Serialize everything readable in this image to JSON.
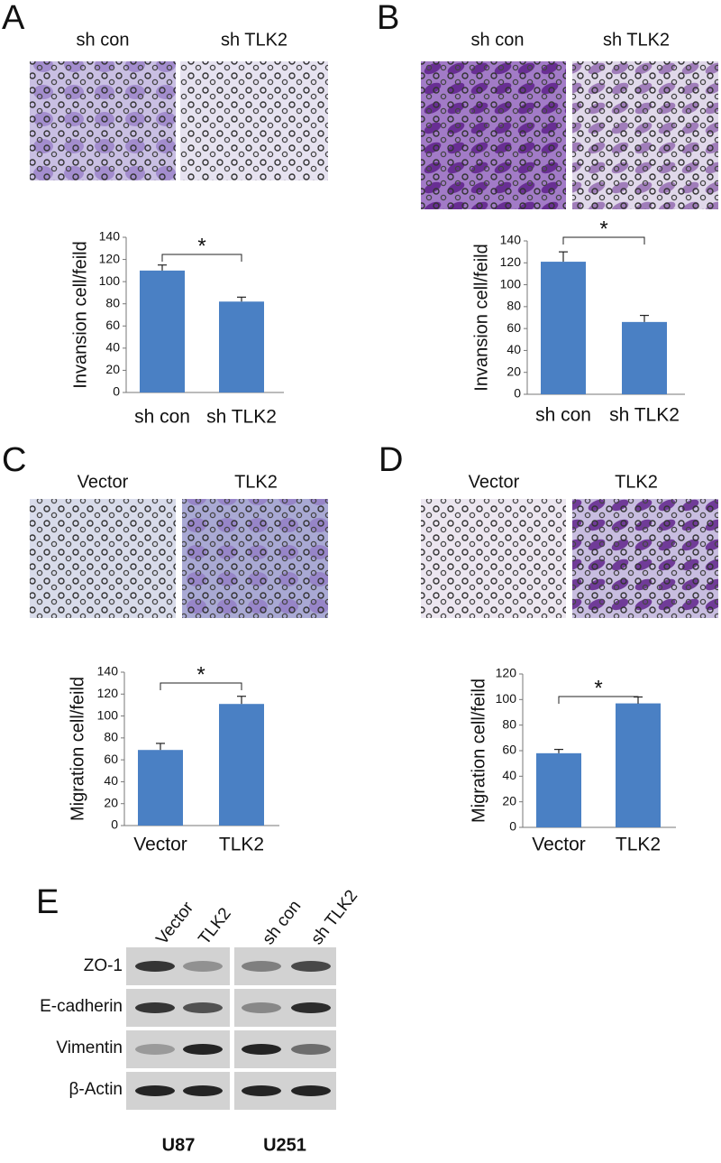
{
  "panel_labels": [
    "A",
    "B",
    "C",
    "D",
    "E"
  ],
  "micrograph_captions": [
    [
      "sh con",
      "sh TLK2"
    ],
    [
      "sh con",
      "sh TLK2"
    ],
    [
      "Vector",
      "TLK2"
    ],
    [
      "Vector",
      "TLK2"
    ]
  ],
  "chart_data": [
    {
      "type": "bar",
      "y_label": "Invansion cell/feild",
      "categories": [
        "sh con",
        "sh TLK2"
      ],
      "values": [
        110,
        82
      ],
      "errors": [
        5,
        4
      ],
      "color": "#4a80c4",
      "ylim": [
        0,
        140
      ],
      "yticks": [
        0,
        20,
        40,
        60,
        80,
        100,
        120,
        140
      ],
      "annotation": "*"
    },
    {
      "type": "bar",
      "y_label": "Invansion cell/feild",
      "categories": [
        "sh con",
        "sh TLK2"
      ],
      "values": [
        121,
        66
      ],
      "errors": [
        9,
        6
      ],
      "color": "#4a80c4",
      "ylim": [
        0,
        140
      ],
      "yticks": [
        0,
        20,
        40,
        60,
        80,
        100,
        120,
        140
      ],
      "annotation": "*"
    },
    {
      "type": "bar",
      "y_label": "Migration cell/feild",
      "categories": [
        "Vector",
        "TLK2"
      ],
      "values": [
        69,
        111
      ],
      "errors": [
        6,
        7
      ],
      "color": "#4a80c4",
      "ylim": [
        0,
        140
      ],
      "yticks": [
        0,
        20,
        40,
        60,
        80,
        100,
        120,
        140
      ],
      "annotation": "*"
    },
    {
      "type": "bar",
      "y_label": "Migration cell/feild",
      "categories": [
        "Vector",
        "TLK2"
      ],
      "values": [
        58,
        97
      ],
      "errors": [
        3,
        5
      ],
      "color": "#4a80c4",
      "ylim": [
        0,
        120
      ],
      "yticks": [
        0,
        20,
        40,
        60,
        80,
        100,
        120
      ],
      "annotation": "*"
    }
  ],
  "western_blot": {
    "lanes": [
      "Vector",
      "TLK2",
      "sh con",
      "sh TLK2"
    ],
    "proteins": [
      "ZO-1",
      "E-cadherin",
      "Vimentin",
      "β-Actin"
    ],
    "cell_lines": [
      "U87",
      "U251"
    ]
  }
}
